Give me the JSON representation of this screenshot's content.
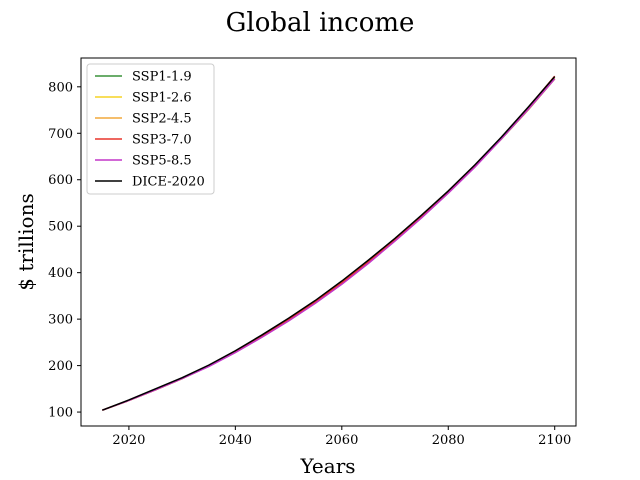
{
  "chart_data": {
    "type": "line",
    "title": "Global income",
    "xlabel": "Years",
    "ylabel": "$ trillions",
    "xlim": [
      2011,
      2104
    ],
    "ylim": [
      70,
      862
    ],
    "xticks": [
      2020,
      2040,
      2060,
      2080,
      2100
    ],
    "yticks": [
      100,
      200,
      300,
      400,
      500,
      600,
      700,
      800
    ],
    "grid": false,
    "legend": "top-left",
    "x": [
      2015,
      2020,
      2025,
      2030,
      2035,
      2040,
      2045,
      2050,
      2055,
      2060,
      2065,
      2070,
      2075,
      2080,
      2085,
      2090,
      2095,
      2100
    ],
    "series": [
      {
        "name": "SSP1-1.9",
        "color": "#3a923a",
        "values": [
          104,
          125,
          148,
          172,
          199,
          230,
          264,
          300,
          338,
          380,
          425,
          472,
          522,
          574,
          629,
          688,
          750,
          817
        ]
      },
      {
        "name": "SSP1-2.6",
        "color": "#f5d425",
        "values": [
          104,
          125,
          148,
          172,
          199,
          230,
          264,
          300,
          338,
          380,
          425,
          472,
          522,
          574,
          629,
          688,
          750,
          817
        ]
      },
      {
        "name": "SSP2-4.5",
        "color": "#f2a93b",
        "values": [
          104,
          125,
          148,
          172,
          199,
          230,
          264,
          300,
          338,
          380,
          425,
          472,
          522,
          574,
          630,
          690,
          753,
          819
        ]
      },
      {
        "name": "SSP3-7.0",
        "color": "#e8352c",
        "values": [
          104,
          125,
          148,
          172,
          199,
          230,
          263,
          299,
          337,
          378,
          423,
          471,
          521,
          574,
          630,
          691,
          755,
          823
        ]
      },
      {
        "name": "SSP5-8.5",
        "color": "#c337c8",
        "values": [
          104,
          125,
          148,
          172,
          198,
          228,
          261,
          296,
          334,
          375,
          420,
          468,
          518,
          571,
          627,
          688,
          751,
          817
        ]
      },
      {
        "name": "DICE-2020",
        "color": "#000000",
        "values": [
          104,
          126,
          150,
          174,
          201,
          232,
          266,
          302,
          340,
          382,
          427,
          474,
          524,
          576,
          632,
          692,
          756,
          822
        ]
      }
    ]
  }
}
